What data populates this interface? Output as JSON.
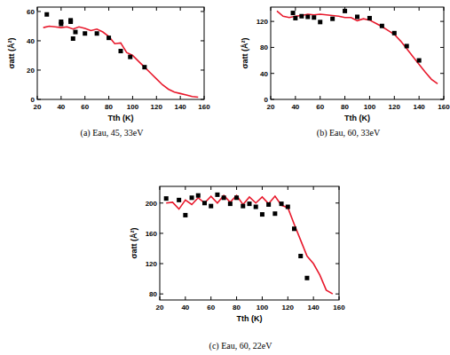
{
  "chart_data": [
    {
      "type": "line",
      "title": "(a) Eau, 45, 33eV",
      "xlabel": "Tth (K)",
      "ylabel": "σatt (Å²)",
      "xlim": [
        20,
        160
      ],
      "xticks": [
        20,
        40,
        60,
        80,
        100,
        120,
        140,
        160
      ],
      "ylim": [
        0,
        63
      ],
      "yticks": [
        0,
        20,
        40,
        60
      ],
      "series": [
        {
          "type": "line",
          "color": "#e8192c",
          "line_style": "solid",
          "x": [
            25,
            30,
            35,
            40,
            45,
            50,
            55,
            60,
            65,
            70,
            75,
            80,
            85,
            90,
            95,
            100,
            105,
            110,
            115,
            120,
            125,
            130,
            135,
            140,
            145,
            150,
            155
          ],
          "values": [
            49,
            50,
            49.5,
            49,
            49.5,
            48,
            49.5,
            48.5,
            47,
            48,
            46,
            43,
            38,
            38.5,
            32,
            30,
            26,
            22,
            18,
            14,
            10,
            7,
            5,
            4,
            3,
            2,
            1.5
          ]
        },
        {
          "type": "scatter",
          "color": "#000000",
          "marker": "square",
          "x": [
            28,
            40,
            40,
            48,
            48,
            50,
            52,
            60,
            70,
            80,
            90,
            98,
            110
          ],
          "values": [
            58,
            51.5,
            53,
            54,
            53,
            41.5,
            46,
            45,
            45,
            42,
            33,
            29,
            22
          ]
        }
      ]
    },
    {
      "type": "line",
      "title": "(b) Eau, 60, 33eV",
      "xlabel": "Tth (K)",
      "ylabel": "σatt (Å²)",
      "xlim": [
        20,
        160
      ],
      "xticks": [
        20,
        40,
        60,
        80,
        100,
        120,
        140,
        160
      ],
      "ylim": [
        0,
        142
      ],
      "yticks": [
        0,
        40,
        80,
        120
      ],
      "series": [
        {
          "type": "line",
          "color": "#e8192c",
          "line_style": "solid",
          "x": [
            25,
            30,
            35,
            40,
            45,
            50,
            55,
            60,
            65,
            70,
            75,
            80,
            85,
            90,
            95,
            100,
            105,
            110,
            115,
            120,
            125,
            130,
            135,
            140,
            145,
            150,
            155
          ],
          "values": [
            136,
            128,
            126,
            128,
            129,
            131,
            130,
            131,
            130,
            129,
            128,
            126,
            126,
            121,
            124,
            122,
            117,
            112,
            106,
            100,
            90,
            78,
            66,
            54,
            42,
            31,
            24
          ]
        },
        {
          "type": "scatter",
          "color": "#000000",
          "marker": "square",
          "x": [
            38,
            40,
            45,
            50,
            55,
            60,
            70,
            80,
            90,
            100,
            110,
            120,
            130,
            140
          ],
          "values": [
            133,
            125,
            128,
            127,
            126,
            119,
            124,
            136,
            127,
            125,
            113,
            102,
            82,
            60
          ]
        }
      ]
    },
    {
      "type": "line",
      "title": "(c) Eau, 60, 22eV",
      "xlabel": "Tth (K)",
      "ylabel": "σatt (Å²)",
      "xlim": [
        20,
        160
      ],
      "xticks": [
        20,
        40,
        60,
        80,
        100,
        120,
        140,
        160
      ],
      "ylim": [
        72,
        222
      ],
      "yticks": [
        80,
        120,
        160,
        200
      ],
      "series": [
        {
          "type": "line",
          "color": "#e8192c",
          "line_style": "solid",
          "x": [
            25,
            30,
            35,
            40,
            45,
            50,
            55,
            60,
            65,
            70,
            75,
            80,
            85,
            90,
            95,
            100,
            105,
            110,
            115,
            120,
            125,
            130,
            135,
            140,
            145,
            150,
            155
          ],
          "values": [
            200,
            201,
            192,
            204,
            198,
            207,
            200,
            209,
            200,
            210,
            201,
            210,
            198,
            208,
            200,
            208,
            199,
            209,
            197,
            194,
            172,
            151,
            130,
            120,
            105,
            85,
            80
          ]
        },
        {
          "type": "scatter",
          "color": "#000000",
          "marker": "square",
          "x": [
            25,
            35,
            40,
            45,
            50,
            55,
            60,
            65,
            70,
            75,
            80,
            85,
            90,
            95,
            100,
            105,
            110,
            115,
            120,
            125,
            130,
            135
          ],
          "values": [
            206,
            204,
            184,
            207,
            210,
            200,
            196,
            211,
            207,
            199,
            207,
            196,
            199,
            195,
            185,
            198,
            186,
            199,
            195,
            166,
            130,
            101
          ]
        }
      ]
    }
  ]
}
